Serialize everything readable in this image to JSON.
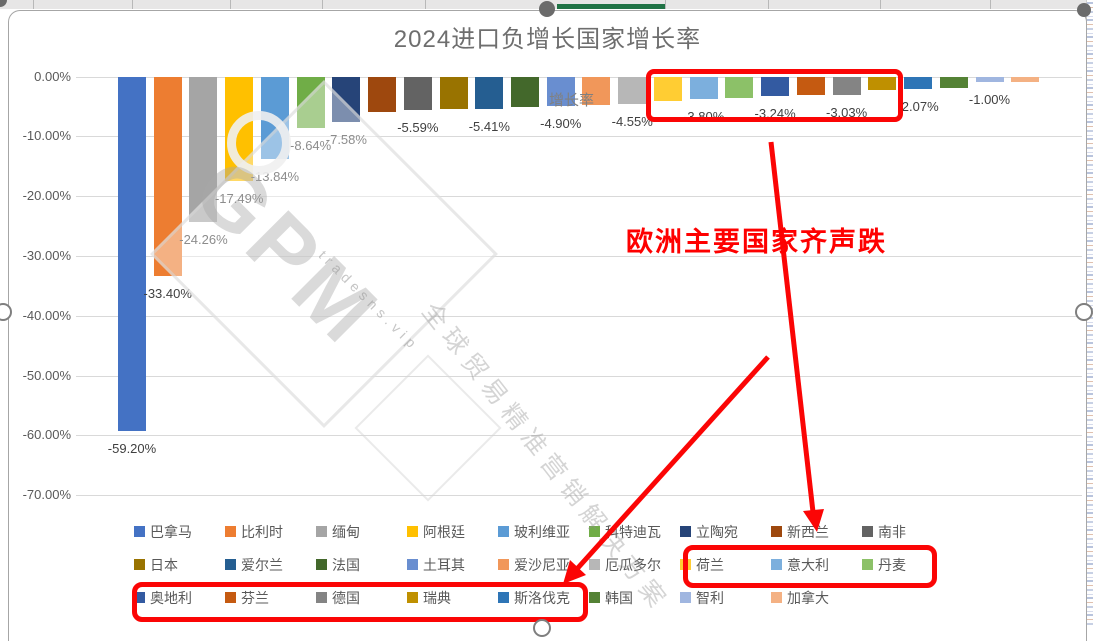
{
  "chart": {
    "title": "2024进口负增长国家增长率",
    "series_label": "增长率",
    "y_ticks": [
      "0.00%",
      "-10.00%",
      "-20.00%",
      "-30.00%",
      "-40.00%",
      "-50.00%",
      "-60.00%",
      "-70.00%"
    ],
    "bars": [
      {
        "country": "巴拿马",
        "value": -59.2,
        "label": "-59.20%",
        "color": "#4472C4"
      },
      {
        "country": "比利时",
        "value": -33.4,
        "label": "-33.40%",
        "color": "#ED7D31"
      },
      {
        "country": "缅甸",
        "value": -24.26,
        "label": "-24.26%",
        "color": "#A5A5A5"
      },
      {
        "country": "阿根廷",
        "value": -17.49,
        "label": "-17.49%",
        "color": "#FFC000"
      },
      {
        "country": "玻利维亚",
        "value": -13.84,
        "label": "-13.84%",
        "color": "#5B9BD5"
      },
      {
        "country": "科特迪瓦",
        "value": -8.64,
        "label": "-8.64%",
        "color": "#70AD47"
      },
      {
        "country": "立陶宛",
        "value": -7.58,
        "label": "-7.58%",
        "color": "#264478"
      },
      {
        "country": "新西兰",
        "value": -5.9,
        "label": null,
        "color": "#9E480E"
      },
      {
        "country": "南非",
        "value": -5.59,
        "label": "-5.59%",
        "color": "#636363"
      },
      {
        "country": "日本",
        "value": -5.5,
        "label": null,
        "color": "#997300"
      },
      {
        "country": "爱尔兰",
        "value": -5.41,
        "label": "-5.41%",
        "color": "#255E91"
      },
      {
        "country": "法国",
        "value": -5.1,
        "label": null,
        "color": "#43682B"
      },
      {
        "country": "土耳其",
        "value": -4.9,
        "label": "-4.90%",
        "color": "#698ED0"
      },
      {
        "country": "爱沙尼亚",
        "value": -4.7,
        "label": null,
        "color": "#F1975A"
      },
      {
        "country": "厄瓜多尔",
        "value": -4.55,
        "label": "-4.55%",
        "color": "#B7B7B7"
      },
      {
        "country": "荷兰",
        "value": -4.1,
        "label": null,
        "color": "#FFCD33"
      },
      {
        "country": "意大利",
        "value": -3.8,
        "label": "-3.80%",
        "color": "#7CAFDD"
      },
      {
        "country": "丹麦",
        "value": -3.55,
        "label": null,
        "color": "#8CC168"
      },
      {
        "country": "奥地利",
        "value": -3.24,
        "label": "-3.24%",
        "color": "#335AA1"
      },
      {
        "country": "芬兰",
        "value": -3.1,
        "label": null,
        "color": "#C55A11"
      },
      {
        "country": "德国",
        "value": -3.03,
        "label": "-3.03%",
        "color": "#848484"
      },
      {
        "country": "瑞典",
        "value": -2.3,
        "label": null,
        "color": "#BF9000"
      },
      {
        "country": "斯洛伐克",
        "value": -2.07,
        "label": "-2.07%",
        "color": "#2E75B6"
      },
      {
        "country": "韩国",
        "value": -1.95,
        "label": null,
        "color": "#548235"
      },
      {
        "country": "智利",
        "value": -1.0,
        "label": "-1.00%",
        "color": "#A0B6E0"
      },
      {
        "country": "加拿大",
        "value": -0.95,
        "label": null,
        "color": "#F4B183"
      }
    ],
    "annotation": {
      "text": "欧洲主要国家齐声跌",
      "color": "#FE0000",
      "highlighted_legend_row2": [
        "荷兰",
        "意大利",
        "丹麦"
      ],
      "highlighted_legend_row3": [
        "奥地利",
        "芬兰",
        "德国",
        "瑞典",
        "斯洛伐克"
      ]
    },
    "watermark": {
      "brand": "GPM",
      "url_text": "tradesns.vip",
      "slogan": "全球贸易精准营销解决方案"
    }
  },
  "chrome": {
    "excel_green": "#217346"
  },
  "chart_data": {
    "type": "bar",
    "title": "2024进口负增长国家增长率",
    "categories": [
      "巴拿马",
      "比利时",
      "缅甸",
      "阿根廷",
      "玻利维亚",
      "科特迪瓦",
      "立陶宛",
      "新西兰",
      "南非",
      "日本",
      "爱尔兰",
      "法国",
      "土耳其",
      "爱沙尼亚",
      "厄瓜多尔",
      "荷兰",
      "意大利",
      "丹麦",
      "奥地利",
      "芬兰",
      "德国",
      "瑞典",
      "斯洛伐克",
      "韩国",
      "智利",
      "加拿大"
    ],
    "series": [
      {
        "name": "增长率",
        "values": [
          -59.2,
          -33.4,
          -24.26,
          -17.49,
          -13.84,
          -8.64,
          -7.58,
          -5.9,
          -5.59,
          -5.5,
          -5.41,
          -5.1,
          -4.9,
          -4.7,
          -4.55,
          -4.1,
          -3.8,
          -3.55,
          -3.24,
          -3.1,
          -3.03,
          -2.3,
          -2.07,
          -1.95,
          -1.0,
          -0.95
        ]
      }
    ],
    "visible_data_labels": [
      "-59.20%",
      "-33.40%",
      "-24.26%",
      "-17.49%",
      "-13.84%",
      "-8.64%",
      "-7.58%",
      "-5.59%",
      "-5.41%",
      "-4.90%",
      "-4.55%",
      "-3.80%",
      "-3.24%",
      "-3.03%",
      "-2.07%",
      "-1.00%"
    ],
    "ylabel": "",
    "xlabel": "",
    "ylim": [
      -70,
      0
    ],
    "y_tick_format": "0.00%",
    "grid": true,
    "legend_position": "bottom",
    "annotations": [
      "欧洲主要国家齐声跌"
    ]
  }
}
